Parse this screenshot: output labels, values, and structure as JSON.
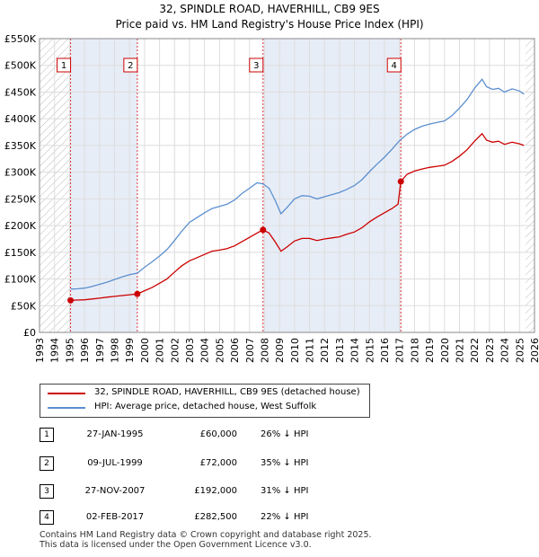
{
  "title": "32, SPINDLE ROAD, HAVERHILL, CB9 9ES",
  "subtitle": "Price paid vs. HM Land Registry's House Price Index (HPI)",
  "chart_data": {
    "type": "line",
    "title": "32, SPINDLE ROAD, HAVERHILL, CB9 9ES",
    "subtitle": "Price paid vs. HM Land Registry's House Price Index (HPI)",
    "xlabel": "",
    "ylabel": "",
    "xlim": [
      1993,
      2026
    ],
    "ylim": [
      0,
      550000
    ],
    "x_ticks": [
      "1993",
      "1994",
      "1995",
      "1996",
      "1997",
      "1998",
      "1999",
      "2000",
      "2001",
      "2002",
      "2003",
      "2004",
      "2005",
      "2006",
      "2007",
      "2008",
      "2009",
      "2010",
      "2011",
      "2012",
      "2013",
      "2014",
      "2015",
      "2016",
      "2017",
      "2018",
      "2019",
      "2020",
      "2021",
      "2022",
      "2023",
      "2024",
      "2025",
      "2026"
    ],
    "y_ticks": [
      {
        "value": 0,
        "label": "£0"
      },
      {
        "value": 50000,
        "label": "£50K"
      },
      {
        "value": 100000,
        "label": "£100K"
      },
      {
        "value": 150000,
        "label": "£150K"
      },
      {
        "value": 200000,
        "label": "£200K"
      },
      {
        "value": 250000,
        "label": "£250K"
      },
      {
        "value": 300000,
        "label": "£300K"
      },
      {
        "value": 350000,
        "label": "£350K"
      },
      {
        "value": 400000,
        "label": "£400K"
      },
      {
        "value": 450000,
        "label": "£450K"
      },
      {
        "value": 500000,
        "label": "£500K"
      },
      {
        "value": 550000,
        "label": "£550K"
      }
    ],
    "grid": true,
    "series": [
      {
        "name": "32, SPINDLE ROAD, HAVERHILL, CB9 9ES (detached house)",
        "color": "#cc0000",
        "points": [
          [
            1995.07,
            60000
          ],
          [
            1995.5,
            60500
          ],
          [
            1996,
            61000
          ],
          [
            1996.5,
            62500
          ],
          [
            1997,
            64000
          ],
          [
            1997.5,
            66000
          ],
          [
            1998,
            67500
          ],
          [
            1998.5,
            69000
          ],
          [
            1999,
            70500
          ],
          [
            1999.52,
            72000
          ],
          [
            2000,
            78000
          ],
          [
            2000.5,
            84000
          ],
          [
            2001,
            92000
          ],
          [
            2001.5,
            100000
          ],
          [
            2002,
            113000
          ],
          [
            2002.5,
            125000
          ],
          [
            2003,
            134000
          ],
          [
            2003.5,
            140000
          ],
          [
            2004,
            146000
          ],
          [
            2004.5,
            152000
          ],
          [
            2005,
            154000
          ],
          [
            2005.5,
            157000
          ],
          [
            2006,
            162000
          ],
          [
            2006.5,
            170000
          ],
          [
            2007,
            178000
          ],
          [
            2007.5,
            186000
          ],
          [
            2007.9,
            192000
          ],
          [
            2008.3,
            186000
          ],
          [
            2008.7,
            170000
          ],
          [
            2009.1,
            152000
          ],
          [
            2009.5,
            160000
          ],
          [
            2010,
            171000
          ],
          [
            2010.5,
            176000
          ],
          [
            2011,
            176000
          ],
          [
            2011.5,
            172000
          ],
          [
            2012,
            175000
          ],
          [
            2012.5,
            177000
          ],
          [
            2013,
            179000
          ],
          [
            2013.5,
            184000
          ],
          [
            2014,
            188000
          ],
          [
            2014.5,
            196000
          ],
          [
            2015,
            207000
          ],
          [
            2015.5,
            216000
          ],
          [
            2016,
            224000
          ],
          [
            2016.5,
            232000
          ],
          [
            2016.9,
            240000
          ],
          [
            2017.09,
            282500
          ],
          [
            2017.5,
            296000
          ],
          [
            2018,
            302000
          ],
          [
            2018.5,
            306000
          ],
          [
            2019,
            309000
          ],
          [
            2019.5,
            311000
          ],
          [
            2020,
            313000
          ],
          [
            2020.5,
            320000
          ],
          [
            2021,
            330000
          ],
          [
            2021.5,
            342000
          ],
          [
            2022,
            358000
          ],
          [
            2022.5,
            372000
          ],
          [
            2022.8,
            360000
          ],
          [
            2023.2,
            356000
          ],
          [
            2023.6,
            358000
          ],
          [
            2024,
            352000
          ],
          [
            2024.5,
            356000
          ],
          [
            2025,
            353000
          ],
          [
            2025.3,
            350000
          ]
        ]
      },
      {
        "name": "HPI: Average price, detached house, West Suffolk",
        "color": "#5b8fcf",
        "points": [
          [
            1995.07,
            81000
          ],
          [
            1995.5,
            81500
          ],
          [
            1996,
            83000
          ],
          [
            1996.5,
            86000
          ],
          [
            1997,
            90000
          ],
          [
            1997.5,
            94000
          ],
          [
            1998,
            99000
          ],
          [
            1998.5,
            104000
          ],
          [
            1999,
            108000
          ],
          [
            1999.52,
            111000
          ],
          [
            2000,
            122000
          ],
          [
            2000.5,
            132000
          ],
          [
            2001,
            143000
          ],
          [
            2001.5,
            155000
          ],
          [
            2002,
            172000
          ],
          [
            2002.5,
            190000
          ],
          [
            2003,
            206000
          ],
          [
            2003.5,
            215000
          ],
          [
            2004,
            224000
          ],
          [
            2004.5,
            232000
          ],
          [
            2005,
            236000
          ],
          [
            2005.5,
            240000
          ],
          [
            2006,
            248000
          ],
          [
            2006.5,
            260000
          ],
          [
            2007,
            270000
          ],
          [
            2007.5,
            280000
          ],
          [
            2007.9,
            278000
          ],
          [
            2008.3,
            270000
          ],
          [
            2008.7,
            248000
          ],
          [
            2009.1,
            222000
          ],
          [
            2009.5,
            234000
          ],
          [
            2010,
            250000
          ],
          [
            2010.5,
            256000
          ],
          [
            2011,
            255000
          ],
          [
            2011.5,
            250000
          ],
          [
            2012,
            254000
          ],
          [
            2012.5,
            258000
          ],
          [
            2013,
            262000
          ],
          [
            2013.5,
            268000
          ],
          [
            2014,
            275000
          ],
          [
            2014.5,
            286000
          ],
          [
            2015,
            301000
          ],
          [
            2015.5,
            315000
          ],
          [
            2016,
            328000
          ],
          [
            2016.5,
            343000
          ],
          [
            2017,
            359000
          ],
          [
            2017.5,
            371000
          ],
          [
            2018,
            380000
          ],
          [
            2018.5,
            386000
          ],
          [
            2019,
            390000
          ],
          [
            2019.5,
            393000
          ],
          [
            2020,
            396000
          ],
          [
            2020.5,
            406000
          ],
          [
            2021,
            420000
          ],
          [
            2021.5,
            436000
          ],
          [
            2022,
            457000
          ],
          [
            2022.5,
            474000
          ],
          [
            2022.8,
            460000
          ],
          [
            2023.2,
            455000
          ],
          [
            2023.6,
            457000
          ],
          [
            2024,
            450000
          ],
          [
            2024.5,
            456000
          ],
          [
            2025,
            452000
          ],
          [
            2025.3,
            446000
          ]
        ]
      }
    ],
    "markers": [
      {
        "n": "1",
        "x": 1995.07,
        "y": 60000
      },
      {
        "n": "2",
        "x": 1999.52,
        "y": 72000
      },
      {
        "n": "3",
        "x": 2007.9,
        "y": 192000
      },
      {
        "n": "4",
        "x": 2017.09,
        "y": 282500
      }
    ],
    "shaded_ranges": [
      [
        1995.07,
        1999.52
      ],
      [
        2007.9,
        2017.09
      ]
    ],
    "hatched_ranges": [
      [
        1993,
        1995.07
      ],
      [
        2025.4,
        2026
      ]
    ]
  },
  "legend": [
    {
      "label": "32, SPINDLE ROAD, HAVERHILL, CB9 9ES (detached house)",
      "color": "#cc0000"
    },
    {
      "label": "HPI: Average price, detached house, West Suffolk",
      "color": "#5b8fcf"
    }
  ],
  "sales": [
    {
      "n": "1",
      "date": "27-JAN-1995",
      "price": "£60,000",
      "hpi": "26% ↓ HPI"
    },
    {
      "n": "2",
      "date": "09-JUL-1999",
      "price": "£72,000",
      "hpi": "35% ↓ HPI"
    },
    {
      "n": "3",
      "date": "27-NOV-2007",
      "price": "£192,000",
      "hpi": "31% ↓ HPI"
    },
    {
      "n": "4",
      "date": "02-FEB-2017",
      "price": "£282,500",
      "hpi": "22% ↓ HPI"
    }
  ],
  "footer": {
    "line1": "Contains HM Land Registry data © Crown copyright and database right 2025.",
    "line2": "This data is licensed under the Open Government Licence v3.0."
  }
}
